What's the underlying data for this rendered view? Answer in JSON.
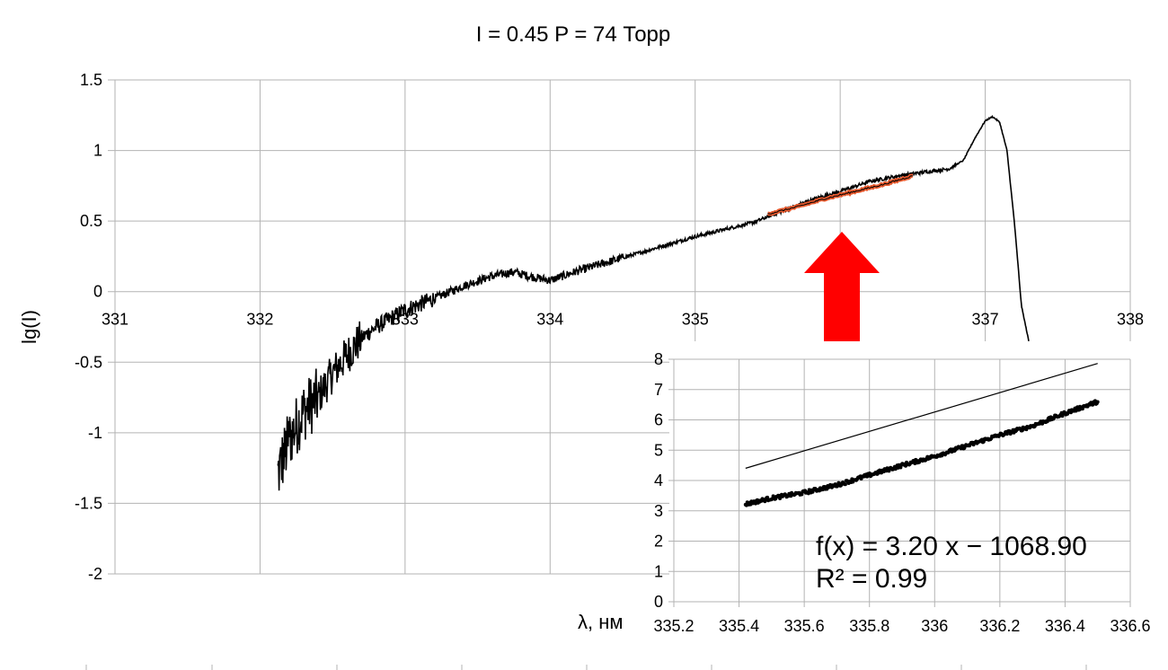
{
  "chart_data": [
    {
      "type": "line",
      "title": "I = 0.45  P = 74 Торр",
      "xlabel": "λ, нм",
      "ylabel": "lg(I)",
      "xlim": [
        331,
        338
      ],
      "ylim": [
        -2,
        1.5
      ],
      "x_ticks": [
        "331",
        "332",
        "333",
        "334",
        "335",
        "336",
        "337",
        "338"
      ],
      "y_ticks": [
        "1.5",
        "1",
        "0.5",
        "0",
        "-0.5",
        "-1",
        "-1.5",
        "-2"
      ],
      "grid": true,
      "series": [
        {
          "color": "#000000",
          "x": [
            332.12,
            332.2,
            332.3,
            332.4,
            332.5,
            332.6,
            332.7,
            332.8,
            332.9,
            333.0,
            333.2,
            333.4,
            333.6,
            333.75,
            333.85,
            334.0,
            334.2,
            334.5,
            334.8,
            335.0,
            335.2,
            335.4,
            335.6,
            335.8,
            336.0,
            336.2,
            336.4,
            336.6,
            336.75,
            336.85,
            336.93,
            337.0,
            337.05,
            337.1,
            337.15,
            337.2,
            337.25,
            337.3
          ],
          "y": [
            -1.3,
            -1.05,
            -0.85,
            -0.75,
            -0.58,
            -0.45,
            -0.33,
            -0.25,
            -0.19,
            -0.13,
            -0.05,
            0.04,
            0.11,
            0.14,
            0.11,
            0.08,
            0.15,
            0.24,
            0.33,
            0.39,
            0.44,
            0.49,
            0.57,
            0.65,
            0.71,
            0.78,
            0.82,
            0.85,
            0.87,
            0.93,
            1.09,
            1.21,
            1.24,
            1.2,
            1.0,
            0.5,
            -0.1,
            -0.35
          ]
        },
        {
          "color": "#e85a2e",
          "x": [
            335.5,
            335.7,
            335.9,
            336.1,
            336.3,
            336.5
          ],
          "y": [
            0.55,
            0.6,
            0.66,
            0.71,
            0.76,
            0.82
          ]
        }
      ]
    },
    {
      "type": "scatter",
      "xlim": [
        335.2,
        336.6
      ],
      "ylim": [
        0,
        8
      ],
      "x_ticks": [
        "335.2",
        "335.4",
        "335.6",
        "335.8",
        "336",
        "336.2",
        "336.4",
        "336.6"
      ],
      "y_ticks": [
        "0",
        "1",
        "2",
        "3",
        "4",
        "5",
        "6",
        "7",
        "8"
      ],
      "grid": true,
      "series": [
        {
          "color": "#000000",
          "x": [
            335.42,
            335.5,
            335.6,
            335.7,
            335.8,
            335.9,
            336.0,
            336.1,
            336.2,
            336.3,
            336.4,
            336.5
          ],
          "y": [
            3.22,
            3.42,
            3.6,
            3.85,
            4.18,
            4.5,
            4.8,
            5.15,
            5.5,
            5.8,
            6.22,
            6.6
          ]
        }
      ],
      "trendline": {
        "slope": 3.2,
        "intercept": -1068.9,
        "color": "#000000"
      },
      "annotations": [
        "f(x) = 3.20 x − 1068.90",
        "R² = 0.99"
      ]
    }
  ],
  "arrow": {
    "color": "#ff0000",
    "icon": "up-arrow-icon"
  }
}
